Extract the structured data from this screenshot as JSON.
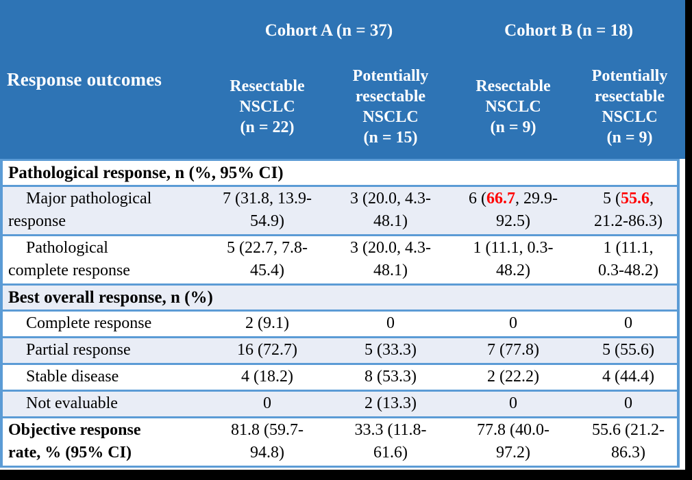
{
  "colors": {
    "header_bg": "#2E74B5",
    "header_text": "#FFFFFF",
    "band_bg": "#E9EDF6",
    "border": "#5B9BD5",
    "highlight_red": "#FF0000",
    "backdrop": "#000000"
  },
  "table": {
    "header": {
      "row_label": "Response outcomes",
      "groups": [
        {
          "label": "Cohort A (n = 37)"
        },
        {
          "label": "Cohort B (n = 18)"
        }
      ],
      "columns": [
        "Resectable\nNSCLC\n(n = 22)",
        "Potentially\nresectable\nNSCLC\n(n = 15)",
        "Resectable\nNSCLC\n(n = 9)",
        "Potentially\nresectable\nNSCLC\n(n = 9)"
      ]
    },
    "rows": [
      {
        "type": "section",
        "label": "Pathological response, n (%, 95% CI)",
        "band": false
      },
      {
        "type": "data",
        "label": "Major pathological\nresponse",
        "indent": true,
        "bold": false,
        "band": true,
        "cells": [
          {
            "text": "7 (31.8, 13.9-\n54.9)"
          },
          {
            "text": "3 (20.0, 4.3-\n48.1)"
          },
          {
            "pre": "6 (",
            "red": "66.7",
            "post": ", 29.9-\n92.5)"
          },
          {
            "pre": "5 (",
            "red": "55.6",
            "post": ",\n21.2-86.3)"
          }
        ]
      },
      {
        "type": "data",
        "label": "Pathological\ncomplete response",
        "indent": true,
        "bold": false,
        "band": false,
        "cells": [
          {
            "text": "5 (22.7, 7.8-\n45.4)"
          },
          {
            "text": "3 (20.0, 4.3-\n48.1)"
          },
          {
            "text": "1 (11.1, 0.3-\n48.2)"
          },
          {
            "text": "1 (11.1,\n0.3-48.2)"
          }
        ]
      },
      {
        "type": "section",
        "label": "Best overall response, n (%)",
        "band": true
      },
      {
        "type": "data",
        "label": "Complete response",
        "indent": true,
        "bold": false,
        "band": false,
        "cells": [
          {
            "text": "2 (9.1)"
          },
          {
            "text": "0"
          },
          {
            "text": "0"
          },
          {
            "text": "0"
          }
        ]
      },
      {
        "type": "data",
        "label": "Partial response",
        "indent": true,
        "bold": false,
        "band": true,
        "cells": [
          {
            "text": "16 (72.7)"
          },
          {
            "text": "5 (33.3)"
          },
          {
            "text": "7 (77.8)"
          },
          {
            "text": "5 (55.6)"
          }
        ]
      },
      {
        "type": "data",
        "label": "Stable disease",
        "indent": true,
        "bold": false,
        "band": false,
        "cells": [
          {
            "text": "4 (18.2)"
          },
          {
            "text": "8 (53.3)"
          },
          {
            "text": "2 (22.2)"
          },
          {
            "text": "4 (44.4)"
          }
        ]
      },
      {
        "type": "data",
        "label": "Not evaluable",
        "indent": true,
        "bold": false,
        "band": true,
        "cells": [
          {
            "text": "0"
          },
          {
            "text": "2 (13.3)"
          },
          {
            "text": "0"
          },
          {
            "text": "0"
          }
        ]
      },
      {
        "type": "data",
        "label": "Objective response\nrate, % (95% CI)",
        "indent": false,
        "bold": true,
        "band": false,
        "cells": [
          {
            "text": "81.8 (59.7-\n94.8)"
          },
          {
            "text": "33.3 (11.8-\n61.6)"
          },
          {
            "text": "77.8 (40.0-\n97.2)"
          },
          {
            "text": "55.6 (21.2-\n86.3)"
          }
        ]
      }
    ]
  }
}
